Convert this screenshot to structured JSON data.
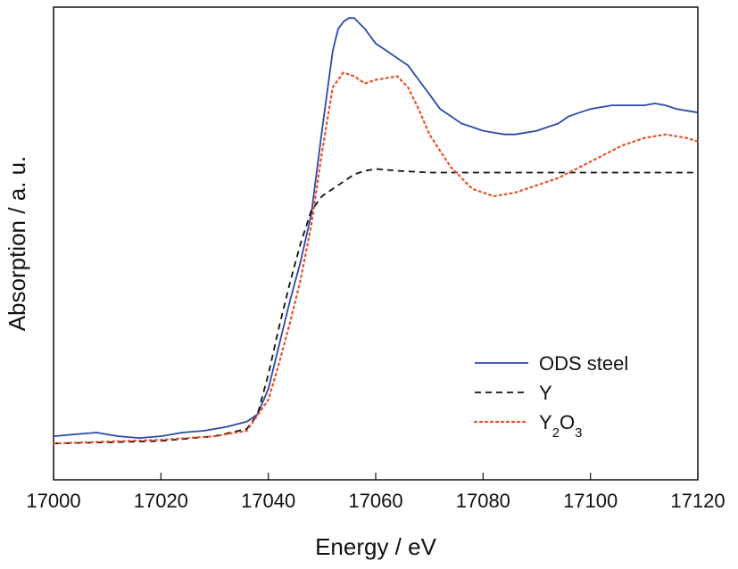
{
  "chart_data": {
    "type": "line",
    "xlabel": "Energy / eV",
    "ylabel": "Absorption / a. u.",
    "xlim": [
      17000,
      17120
    ],
    "ylim": [
      -0.1,
      1.2
    ],
    "xticks": [
      "17000",
      "17020",
      "17040",
      "17060",
      "17080",
      "17100",
      "17120"
    ],
    "y_tick_labels": false,
    "grid": false,
    "legend_position": "bottom-right",
    "series": [
      {
        "name": "ODS steel",
        "legend_sub": "",
        "color": "#2a4aa8",
        "style": "solid",
        "x": [
          17000,
          17004,
          17008,
          17012,
          17016,
          17020,
          17024,
          17028,
          17032,
          17036,
          17038,
          17040,
          17042,
          17044,
          17046,
          17048,
          17050,
          17052,
          17053,
          17054,
          17055,
          17056,
          17058,
          17060,
          17062,
          17064,
          17066,
          17068,
          17070,
          17072,
          17074,
          17076,
          17078,
          17080,
          17082,
          17084,
          17086,
          17088,
          17090,
          17092,
          17094,
          17096,
          17098,
          17100,
          17102,
          17104,
          17106,
          17108,
          17110,
          17112,
          17114,
          17116,
          17118,
          17120
        ],
        "y": [
          0.02,
          0.025,
          0.03,
          0.02,
          0.015,
          0.02,
          0.03,
          0.035,
          0.045,
          0.06,
          0.08,
          0.15,
          0.27,
          0.39,
          0.5,
          0.63,
          0.86,
          1.08,
          1.14,
          1.16,
          1.17,
          1.17,
          1.14,
          1.1,
          1.08,
          1.06,
          1.04,
          1.0,
          0.96,
          0.92,
          0.9,
          0.88,
          0.87,
          0.86,
          0.855,
          0.85,
          0.85,
          0.855,
          0.86,
          0.87,
          0.88,
          0.9,
          0.91,
          0.92,
          0.925,
          0.93,
          0.93,
          0.93,
          0.93,
          0.935,
          0.93,
          0.92,
          0.915,
          0.91
        ]
      },
      {
        "name": "Y",
        "legend_sub": "",
        "color": "#111111",
        "style": "dashed",
        "x": [
          17000,
          17010,
          17020,
          17030,
          17036,
          17038,
          17040,
          17042,
          17044,
          17046,
          17048,
          17050,
          17052,
          17054,
          17056,
          17058,
          17060,
          17064,
          17070,
          17080,
          17090,
          17100,
          17110,
          17120
        ],
        "y": [
          0.0,
          0.003,
          0.007,
          0.02,
          0.04,
          0.08,
          0.19,
          0.32,
          0.44,
          0.55,
          0.64,
          0.68,
          0.7,
          0.72,
          0.74,
          0.75,
          0.755,
          0.75,
          0.745,
          0.745,
          0.745,
          0.745,
          0.745,
          0.745
        ]
      },
      {
        "name": "Y",
        "legend_sub": "2O3",
        "color": "#e8502a",
        "style": "dotted",
        "x": [
          17000,
          17010,
          17020,
          17030,
          17036,
          17040,
          17042,
          17044,
          17046,
          17048,
          17050,
          17052,
          17054,
          17056,
          17058,
          17060,
          17062,
          17064,
          17066,
          17068,
          17070,
          17074,
          17078,
          17082,
          17086,
          17090,
          17094,
          17098,
          17102,
          17106,
          17110,
          17114,
          17118,
          17120
        ],
        "y": [
          0.0,
          0.005,
          0.01,
          0.02,
          0.035,
          0.12,
          0.22,
          0.33,
          0.45,
          0.6,
          0.8,
          0.98,
          1.02,
          1.01,
          0.99,
          1.0,
          1.005,
          1.01,
          0.98,
          0.92,
          0.85,
          0.76,
          0.7,
          0.68,
          0.69,
          0.71,
          0.73,
          0.76,
          0.79,
          0.82,
          0.84,
          0.85,
          0.84,
          0.83
        ]
      }
    ]
  }
}
